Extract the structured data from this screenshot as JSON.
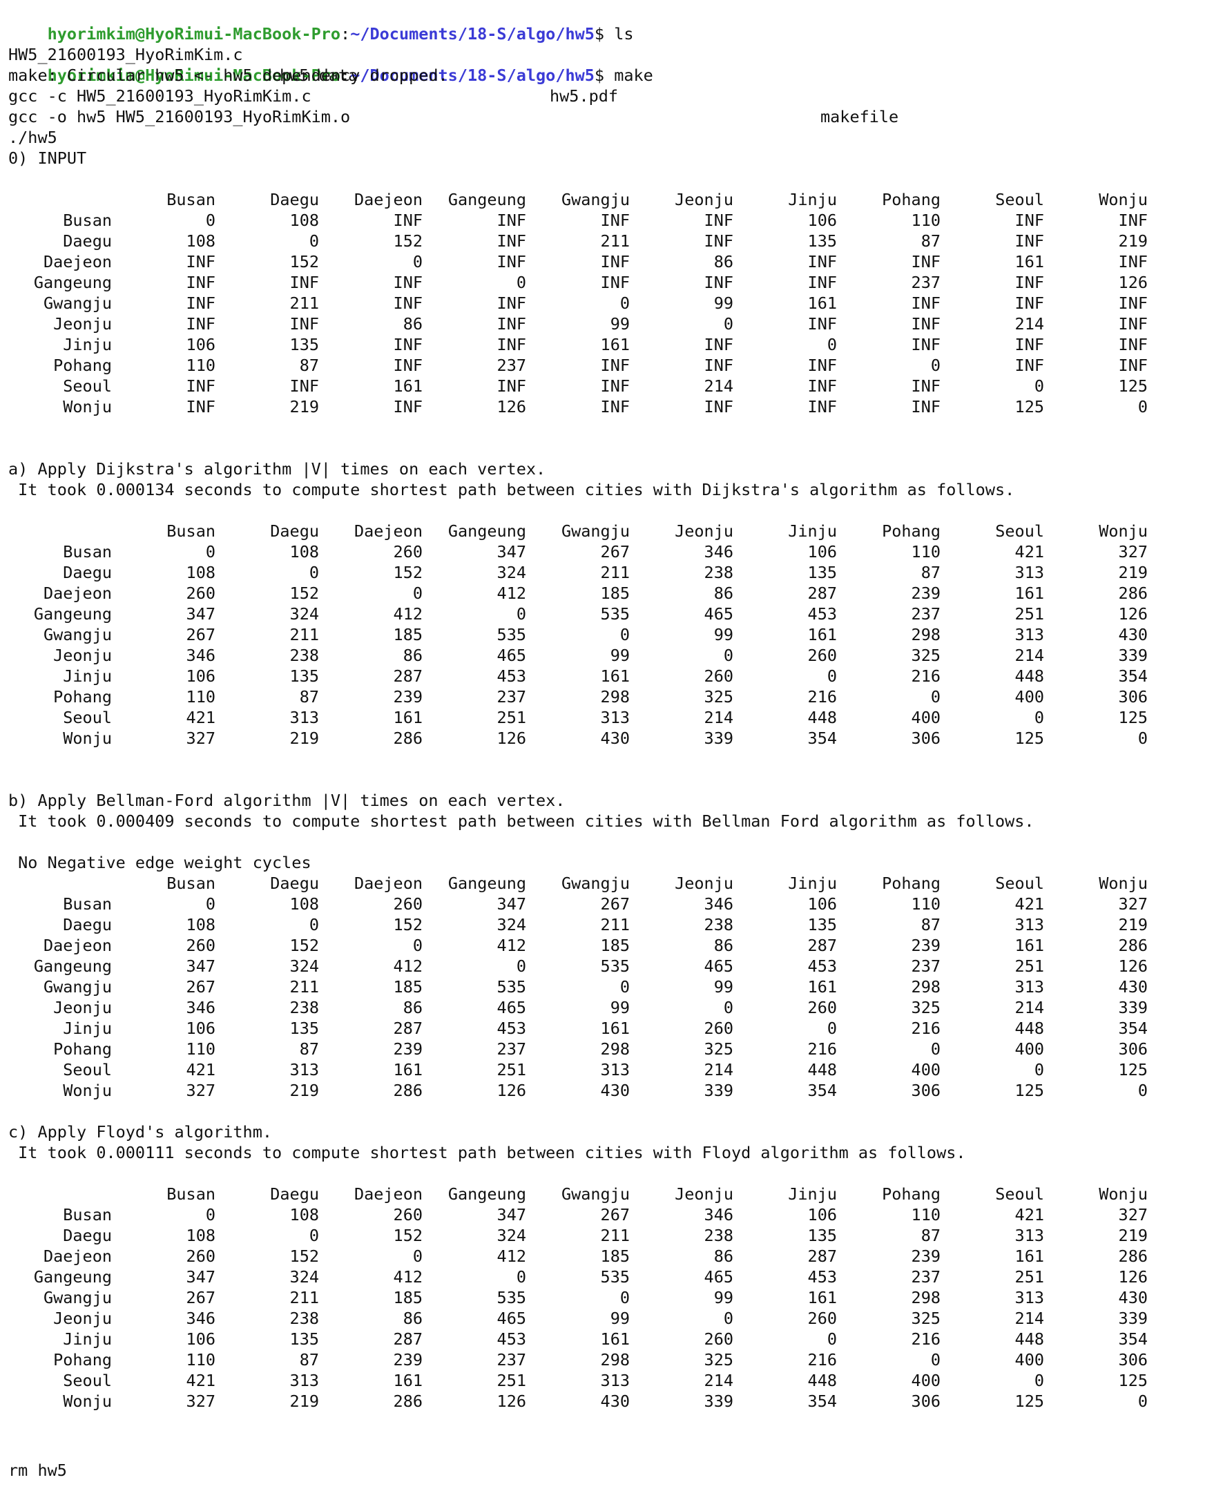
{
  "prompt": {
    "user_host": "hyorimkim@HyoRimui-MacBook-Pro",
    "separator": ":",
    "path": "~/Documents/18-S/algo/hw5",
    "symbol": "$"
  },
  "commands": {
    "ls": "ls",
    "make": "make"
  },
  "ls_files": [
    "HW5_21600193_HyoRimKim.c",
    "hw5.data",
    "hw5.pdf",
    "makefile"
  ],
  "make_output": [
    "make: Circular hw5 <- hw5 dependency dropped.",
    "gcc -c HW5_21600193_HyoRimKim.c",
    "gcc -o hw5 HW5_21600193_HyoRimKim.o",
    "./hw5"
  ],
  "cities": [
    "Busan",
    "Daegu",
    "Daejeon",
    "Gangeung",
    "Gwangju",
    "Jeonju",
    "Jinju",
    "Pohang",
    "Seoul",
    "Wonju"
  ],
  "sections": {
    "input": {
      "heading": "0) INPUT",
      "matrix": [
        [
          "0",
          "108",
          "INF",
          "INF",
          "INF",
          "INF",
          "106",
          "110",
          "INF",
          "INF"
        ],
        [
          "108",
          "0",
          "152",
          "INF",
          "211",
          "INF",
          "135",
          "87",
          "INF",
          "219"
        ],
        [
          "INF",
          "152",
          "0",
          "INF",
          "INF",
          "86",
          "INF",
          "INF",
          "161",
          "INF"
        ],
        [
          "INF",
          "INF",
          "INF",
          "0",
          "INF",
          "INF",
          "INF",
          "237",
          "INF",
          "126"
        ],
        [
          "INF",
          "211",
          "INF",
          "INF",
          "0",
          "99",
          "161",
          "INF",
          "INF",
          "INF"
        ],
        [
          "INF",
          "INF",
          "86",
          "INF",
          "99",
          "0",
          "INF",
          "INF",
          "214",
          "INF"
        ],
        [
          "106",
          "135",
          "INF",
          "INF",
          "161",
          "INF",
          "0",
          "INF",
          "INF",
          "INF"
        ],
        [
          "110",
          "87",
          "INF",
          "237",
          "INF",
          "INF",
          "INF",
          "0",
          "INF",
          "INF"
        ],
        [
          "INF",
          "INF",
          "161",
          "INF",
          "INF",
          "214",
          "INF",
          "INF",
          "0",
          "125"
        ],
        [
          "INF",
          "219",
          "INF",
          "126",
          "INF",
          "INF",
          "INF",
          "INF",
          "125",
          "0"
        ]
      ]
    },
    "dijkstra": {
      "heading": "a) Apply Dijkstra's algorithm |V| times on each vertex.",
      "timing": " It took 0.000134 seconds to compute shortest path between cities with Dijkstra's algorithm as follows."
    },
    "bellman": {
      "heading": "b) Apply Bellman-Ford algorithm |V| times on each vertex.",
      "timing": " It took 0.000409 seconds to compute shortest path between cities with Bellman Ford algorithm as follows.",
      "note": " No Negative edge weight cycles"
    },
    "floyd": {
      "heading": "c) Apply Floyd's algorithm.",
      "timing": " It took 0.000111 seconds to compute shortest path between cities with Floyd algorithm as follows."
    }
  },
  "shortest_matrix": [
    [
      "0",
      "108",
      "260",
      "347",
      "267",
      "346",
      "106",
      "110",
      "421",
      "327"
    ],
    [
      "108",
      "0",
      "152",
      "324",
      "211",
      "238",
      "135",
      "87",
      "313",
      "219"
    ],
    [
      "260",
      "152",
      "0",
      "412",
      "185",
      "86",
      "287",
      "239",
      "161",
      "286"
    ],
    [
      "347",
      "324",
      "412",
      "0",
      "535",
      "465",
      "453",
      "237",
      "251",
      "126"
    ],
    [
      "267",
      "211",
      "185",
      "535",
      "0",
      "99",
      "161",
      "298",
      "313",
      "430"
    ],
    [
      "346",
      "238",
      "86",
      "465",
      "99",
      "0",
      "260",
      "325",
      "214",
      "339"
    ],
    [
      "106",
      "135",
      "287",
      "453",
      "161",
      "260",
      "0",
      "216",
      "448",
      "354"
    ],
    [
      "110",
      "87",
      "239",
      "237",
      "298",
      "325",
      "216",
      "0",
      "400",
      "306"
    ],
    [
      "421",
      "313",
      "161",
      "251",
      "313",
      "214",
      "448",
      "400",
      "0",
      "125"
    ],
    [
      "327",
      "219",
      "286",
      "126",
      "430",
      "339",
      "354",
      "306",
      "125",
      "0"
    ]
  ],
  "final_command": "rm hw5"
}
